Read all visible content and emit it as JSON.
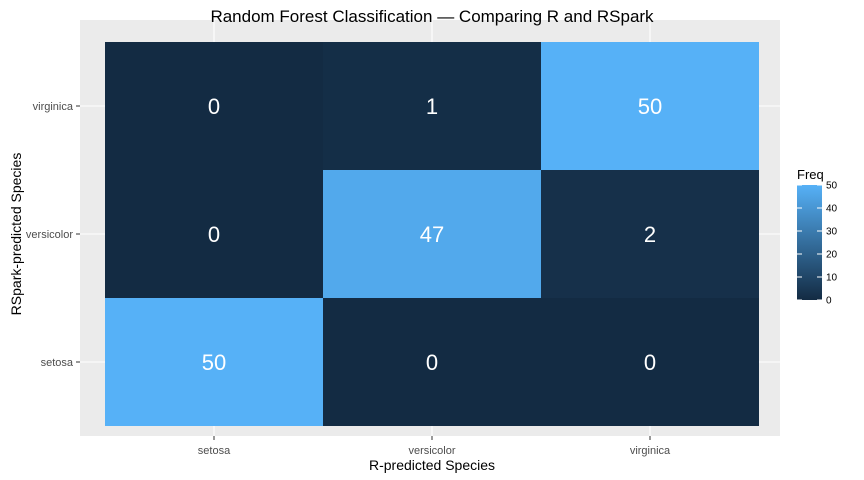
{
  "chart_data": {
    "type": "heatmap",
    "title": "Random Forest Classification — Comparing R and RSpark",
    "xlabel": "R-predicted Species",
    "ylabel": "RSpark-predicted Species",
    "x_categories": [
      "setosa",
      "versicolor",
      "virginica"
    ],
    "y_categories": [
      "setosa",
      "versicolor",
      "virginica"
    ],
    "cells": [
      {
        "x": "setosa",
        "y": "setosa",
        "value": 50
      },
      {
        "x": "versicolor",
        "y": "setosa",
        "value": 0
      },
      {
        "x": "virginica",
        "y": "setosa",
        "value": 0
      },
      {
        "x": "setosa",
        "y": "versicolor",
        "value": 0
      },
      {
        "x": "versicolor",
        "y": "versicolor",
        "value": 47
      },
      {
        "x": "virginica",
        "y": "versicolor",
        "value": 2
      },
      {
        "x": "setosa",
        "y": "virginica",
        "value": 0
      },
      {
        "x": "versicolor",
        "y": "virginica",
        "value": 1
      },
      {
        "x": "virginica",
        "y": "virginica",
        "value": 50
      }
    ],
    "legend": {
      "title": "Freq",
      "ticks": [
        0,
        10,
        20,
        30,
        40,
        50
      ],
      "low_color": "#132b43",
      "high_color": "#56b1f7",
      "range": [
        0,
        50
      ],
      "placement": "right"
    },
    "panel_background": "#ebebeb",
    "grid": true
  }
}
